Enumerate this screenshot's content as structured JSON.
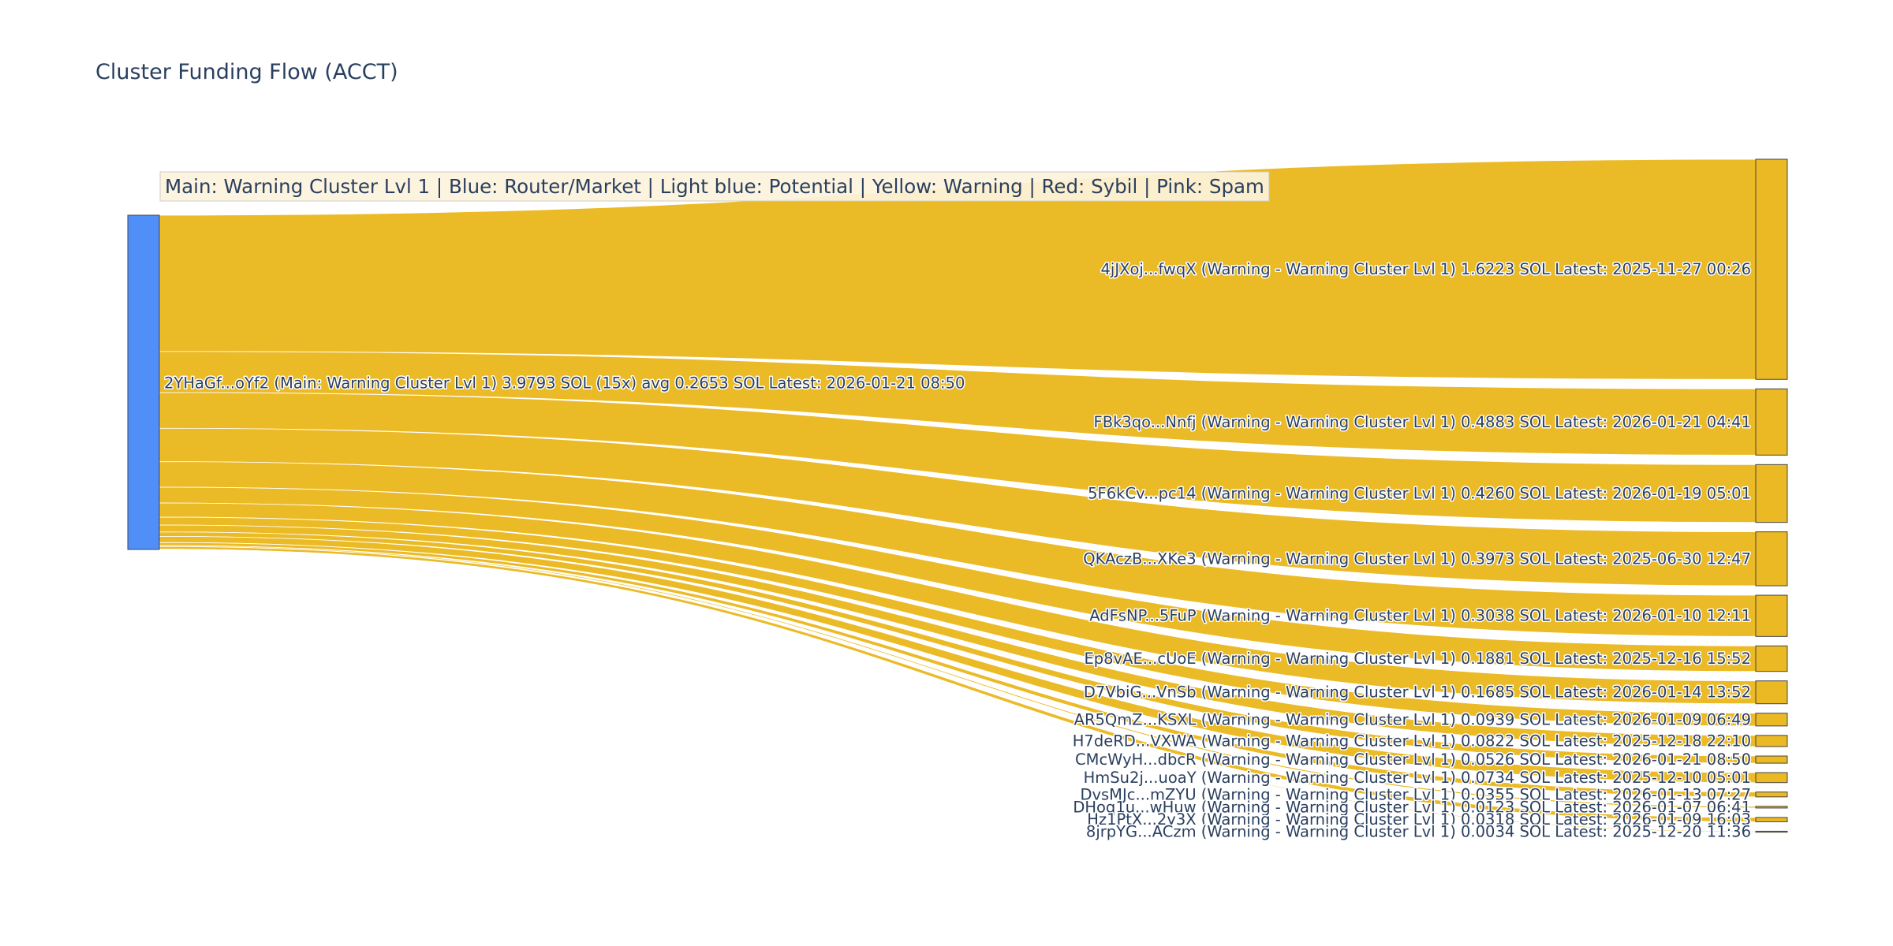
{
  "chart_data": {
    "type": "sankey",
    "title": "Cluster Funding Flow (ACCT)",
    "legend_annotation": "Main: Warning Cluster Lvl 1  |  Blue: Router/Market | Light blue: Potential | Yellow: Warning | Red: Sybil | Pink: Spam",
    "colors": {
      "source_node": "#4f8ff7",
      "target_node": "#ebb923",
      "link": "#ebb923",
      "node_border": "#444444",
      "legend_bg": "#fdf3dc",
      "legend_border": "#cccccc",
      "text": "#2a3f5f"
    },
    "source": {
      "id": "2YHaGf...oYf2",
      "label": "2YHaGf...oYf2 (Main: Warning Cluster Lvl 1) 3.9793 SOL (15x) avg 0.2653 SOL Latest: 2026-01-21 08:50",
      "value": 3.9793
    },
    "targets": [
      {
        "id": "4jJXoj...fwqX",
        "value": 1.6223,
        "label": "4jJXoj...fwqX (Warning - Warning Cluster Lvl 1) 1.6223 SOL Latest: 2025-11-27 00:26"
      },
      {
        "id": "FBk3qo...Nnfj",
        "value": 0.4883,
        "label": "FBk3qo...Nnfj (Warning - Warning Cluster Lvl 1) 0.4883 SOL Latest: 2026-01-21 04:41"
      },
      {
        "id": "5F6kCv...pc14",
        "value": 0.426,
        "label": "5F6kCv...pc14 (Warning - Warning Cluster Lvl 1) 0.4260 SOL Latest: 2026-01-19 05:01"
      },
      {
        "id": "QKAczB...XKe3",
        "value": 0.3973,
        "label": "QKAczB...XKe3 (Warning - Warning Cluster Lvl 1) 0.3973 SOL Latest: 2025-06-30 12:47"
      },
      {
        "id": "AdFsNP...5FuP",
        "value": 0.3038,
        "label": "AdFsNP...5FuP (Warning - Warning Cluster Lvl 1) 0.3038 SOL Latest: 2026-01-10 12:11"
      },
      {
        "id": "Ep8vAE...cUoE",
        "value": 0.1881,
        "label": "Ep8vAE...cUoE (Warning - Warning Cluster Lvl 1) 0.1881 SOL Latest: 2025-12-16 15:52"
      },
      {
        "id": "D7VbiG...VnSb",
        "value": 0.1685,
        "label": "D7VbiG...VnSb (Warning - Warning Cluster Lvl 1) 0.1685 SOL Latest: 2026-01-14 13:52"
      },
      {
        "id": "AR5QmZ...KSXL",
        "value": 0.0939,
        "label": "AR5QmZ...KSXL (Warning - Warning Cluster Lvl 1) 0.0939 SOL Latest: 2026-01-09 06:49"
      },
      {
        "id": "H7deRD...VXWA",
        "value": 0.0822,
        "label": "H7deRD...VXWA (Warning - Warning Cluster Lvl 1) 0.0822 SOL Latest: 2025-12-18 22:10"
      },
      {
        "id": "CMcWyH...dbcR",
        "value": 0.0526,
        "label": "CMcWyH...dbcR (Warning - Warning Cluster Lvl 1) 0.0526 SOL Latest: 2026-01-21 08:50"
      },
      {
        "id": "HmSu2j...uoaY",
        "value": 0.0734,
        "label": "HmSu2j...uoaY (Warning - Warning Cluster Lvl 1) 0.0734 SOL Latest: 2025-12-10 05:01"
      },
      {
        "id": "DvsMJc...mZYU",
        "value": 0.0355,
        "label": "DvsMJc...mZYU (Warning - Warning Cluster Lvl 1) 0.0355 SOL Latest: 2026-01-13 07:27"
      },
      {
        "id": "DHoq1u...wHuw",
        "value": 0.0123,
        "label": "DHoq1u...wHuw (Warning - Warning Cluster Lvl 1) 0.0123 SOL Latest: 2026-01-07 06:41"
      },
      {
        "id": "Hz1PtX...2y3X",
        "value": 0.0318,
        "label": "Hz1PtX...2y3X (Warning - Warning Cluster Lvl 1) 0.0318 SOL Latest: 2026-01-09 16:03"
      },
      {
        "id": "8jrpYG...ACzm",
        "value": 0.0034,
        "label": "8jrpYG...ACzm (Warning - Warning Cluster Lvl 1) 0.0034 SOL Latest: 2025-12-20 11:36"
      }
    ]
  }
}
